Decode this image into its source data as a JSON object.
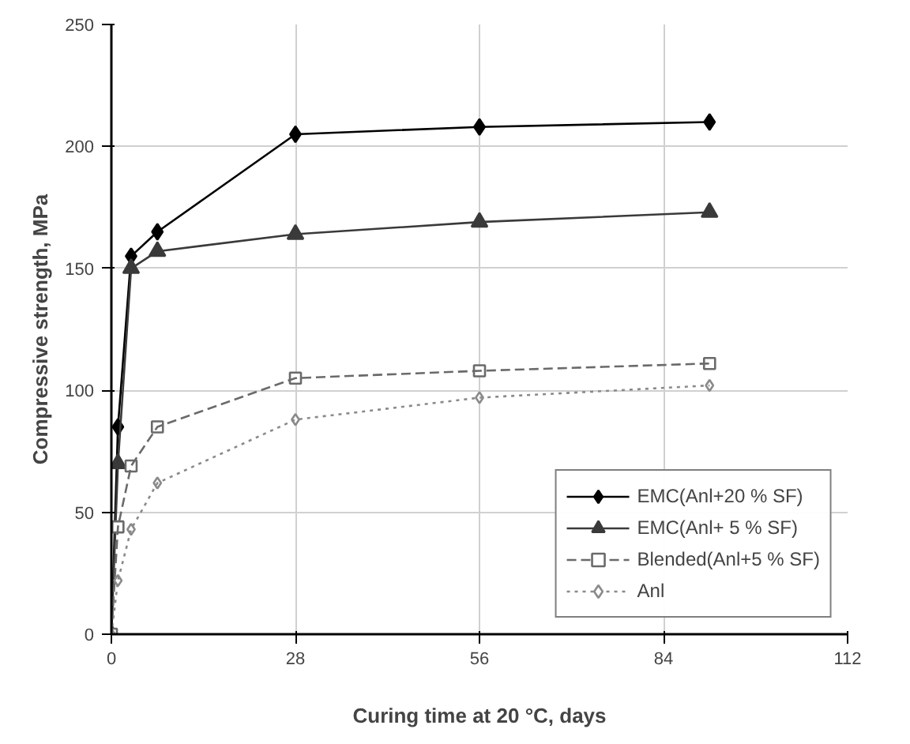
{
  "chart_data": {
    "type": "line",
    "xlabel": "Curing time at 20 °C, days",
    "ylabel": "Compressive strength, MPa",
    "xlim": [
      0,
      112
    ],
    "xticks": [
      0,
      28,
      56,
      84,
      112
    ],
    "ylim": [
      0,
      250
    ],
    "yticks": [
      0,
      50,
      100,
      150,
      200,
      250
    ],
    "grid": true,
    "legend": "bottom right",
    "series": [
      {
        "name": "EMC(Anl+20 % SF)",
        "color": "#000000",
        "marker": "diamond",
        "line_style": "solid",
        "x": [
          0,
          1,
          3,
          7,
          28,
          56,
          91
        ],
        "values": [
          0,
          85,
          155,
          165,
          205,
          208,
          210
        ]
      },
      {
        "name": "EMC(Anl+ 5 % SF)",
        "color": "#3a3a3a",
        "marker": "triangle",
        "line_style": "solid",
        "x": [
          0,
          1,
          3,
          7,
          28,
          56,
          91
        ],
        "values": [
          0,
          70,
          150,
          157,
          164,
          169,
          173
        ]
      },
      {
        "name": "Blended(Anl+5 % SF)",
        "color": "#6a6a6a",
        "marker": "square",
        "line_style": "dashed",
        "x": [
          0,
          1,
          3,
          7,
          28,
          56,
          91
        ],
        "values": [
          0,
          44,
          69,
          85,
          105,
          108,
          111
        ]
      },
      {
        "name": "Anl",
        "color": "#8a8a8a",
        "marker": "diamond",
        "line_style": "dotted",
        "x": [
          0,
          1,
          3,
          7,
          28,
          56,
          91
        ],
        "values": [
          0,
          22,
          43,
          62,
          88,
          97,
          102
        ]
      }
    ]
  }
}
